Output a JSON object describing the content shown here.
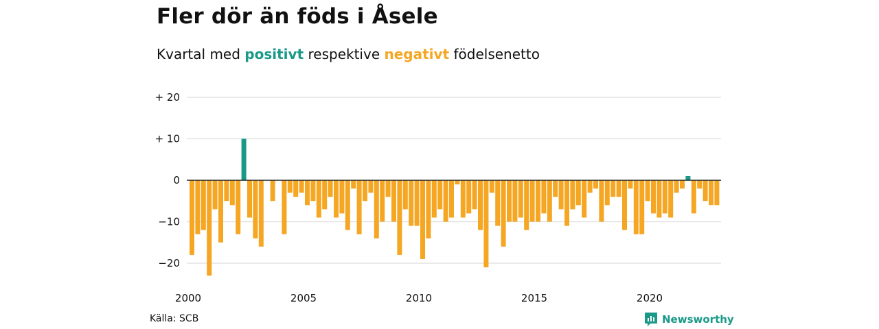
{
  "header": {
    "title": "Fler dör än föds i Åsele",
    "subtitle_pre": "Kvartal med",
    "subtitle_pos": "positivt",
    "subtitle_mid": "respektive",
    "subtitle_neg": "negativt",
    "subtitle_post": "födelsenetto"
  },
  "footer": {
    "source": "Källa: SCB",
    "brand": "Newsworthy"
  },
  "colors": {
    "positive": "#1a9988",
    "negative": "#f5a623",
    "grid": "#dddddd",
    "zero_line": "#222222"
  },
  "chart_data": {
    "type": "bar",
    "start_year": 2000,
    "quarters_per_year": 4,
    "x_tick_labels": [
      "2000",
      "2005",
      "2010",
      "2015",
      "2020"
    ],
    "y_ticks": [
      20,
      10,
      0,
      -10,
      -20
    ],
    "y_tick_labels": [
      "+ 20",
      "+ 10",
      "0",
      "−10",
      "−20"
    ],
    "ylim": [
      -24,
      20
    ],
    "grid": true,
    "values": [
      -18,
      -13,
      -12,
      -23,
      -7,
      -15,
      -5,
      -6,
      -13,
      10,
      -9,
      -14,
      -16,
      0,
      -5,
      0,
      -13,
      -3,
      -4,
      -3,
      -6,
      -5,
      -9,
      -7,
      -4,
      -9,
      -8,
      -12,
      -2,
      -13,
      -5,
      -3,
      -14,
      -10,
      -4,
      -10,
      -18,
      -7,
      -11,
      -11,
      -19,
      -14,
      -9,
      -7,
      -10,
      -9,
      -1,
      -9,
      -8,
      -7,
      -12,
      -21,
      -3,
      -11,
      -16,
      -10,
      -10,
      -9,
      -12,
      -10,
      -10,
      -8,
      -10,
      -4,
      -7,
      -11,
      -7,
      -6,
      -9,
      -3,
      -2,
      -10,
      -6,
      -4,
      -4,
      -12,
      -2,
      -13,
      -13,
      -5,
      -8,
      -9,
      -8,
      -9,
      -3,
      -2,
      1,
      -8,
      -2,
      -5,
      -6,
      -6
    ]
  }
}
